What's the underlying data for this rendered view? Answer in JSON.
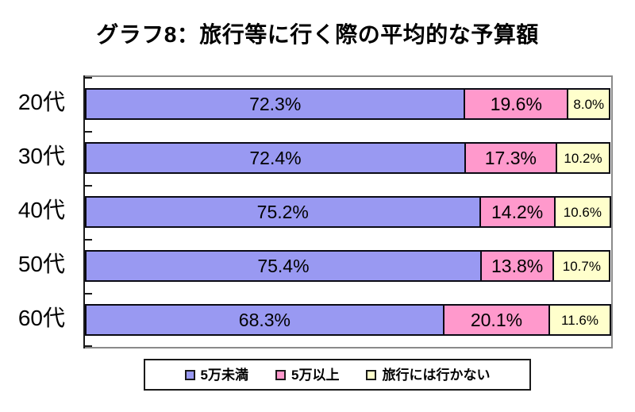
{
  "chart_data": {
    "type": "bar",
    "orientation": "horizontal",
    "stacked": true,
    "title": "グラフ8：旅行等に行く際の平均的な予算額",
    "categories": [
      "20代",
      "30代",
      "40代",
      "50代",
      "60代"
    ],
    "series": [
      {
        "name": "5万未満",
        "color": "#9999F2",
        "values": [
          72.3,
          72.4,
          75.2,
          75.4,
          68.3
        ]
      },
      {
        "name": "5万以上",
        "color": "#FF99CC",
        "values": [
          19.6,
          17.3,
          14.2,
          13.8,
          20.1
        ]
      },
      {
        "name": "旅行には行かない",
        "color": "#FFFFCC",
        "values": [
          8.0,
          10.2,
          10.6,
          10.7,
          11.6
        ]
      }
    ],
    "value_labels": [
      [
        "72.3%",
        "19.6%",
        "8.0%"
      ],
      [
        "72.4%",
        "17.3%",
        "10.2%"
      ],
      [
        "75.2%",
        "14.2%",
        "10.6%"
      ],
      [
        "75.4%",
        "13.8%",
        "10.7%"
      ],
      [
        "68.3%",
        "20.1%",
        "11.6%"
      ]
    ],
    "xlim": [
      0,
      100
    ],
    "grid": false,
    "legend_position": "bottom",
    "axis_color": "#1a1a1a",
    "plot_border_color": "#8a8a8a",
    "segment_border_color": "#0a0a14"
  }
}
